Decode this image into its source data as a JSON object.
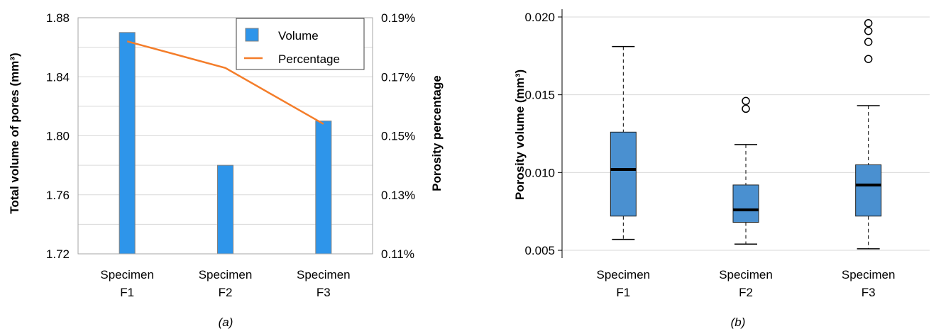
{
  "chart_data": [
    {
      "panel": "(a)",
      "type": "bar",
      "categories": [
        [
          "Specimen",
          "F1"
        ],
        [
          "Specimen",
          "F2"
        ],
        [
          "Specimen",
          "F3"
        ]
      ],
      "y_left": {
        "label": "Total volume of pores (mm³)",
        "ylim": [
          1.72,
          1.88
        ],
        "ticks": [
          "1.72",
          "1.76",
          "1.80",
          "1.84",
          "1.88"
        ]
      },
      "y_right": {
        "label": "Porosity percentage",
        "ylim": [
          0.11,
          0.19
        ],
        "ticks": [
          "0.11%",
          "0.13%",
          "0.15%",
          "0.17%",
          "0.19%"
        ]
      },
      "grid": true,
      "legend_position": "top-right",
      "series": [
        {
          "name": "Volume",
          "kind": "bar",
          "axis": "left",
          "color": "#2e95ea",
          "values": [
            1.87,
            1.78,
            1.81
          ]
        },
        {
          "name": "Percentage",
          "kind": "line",
          "axis": "right",
          "color": "#f47d2a",
          "values": [
            0.182,
            0.173,
            0.154
          ]
        }
      ]
    },
    {
      "panel": "(b)",
      "type": "box",
      "categories": [
        [
          "Specimen",
          "F1"
        ],
        [
          "Specimen",
          "F2"
        ],
        [
          "Specimen",
          "F3"
        ]
      ],
      "ylabel": "Porosity volume (mm³)",
      "ylim": [
        0.0045,
        0.0205
      ],
      "ticks": [
        "0.005",
        "0.010",
        "0.015",
        "0.020"
      ],
      "grid": true,
      "box_color": "#4a90d0",
      "boxes": [
        {
          "whisker_low": 0.0057,
          "q1": 0.0072,
          "median": 0.0102,
          "q3": 0.0126,
          "whisker_high": 0.0181,
          "outliers": []
        },
        {
          "whisker_low": 0.0054,
          "q1": 0.0068,
          "median": 0.0076,
          "q3": 0.0092,
          "whisker_high": 0.0118,
          "outliers": [
            0.0141,
            0.0146
          ]
        },
        {
          "whisker_low": 0.0051,
          "q1": 0.0072,
          "median": 0.0092,
          "q3": 0.0105,
          "whisker_high": 0.0143,
          "outliers": [
            0.0173,
            0.0184,
            0.0191,
            0.0196
          ]
        }
      ]
    }
  ],
  "captions": [
    "(a)",
    "(b)"
  ]
}
